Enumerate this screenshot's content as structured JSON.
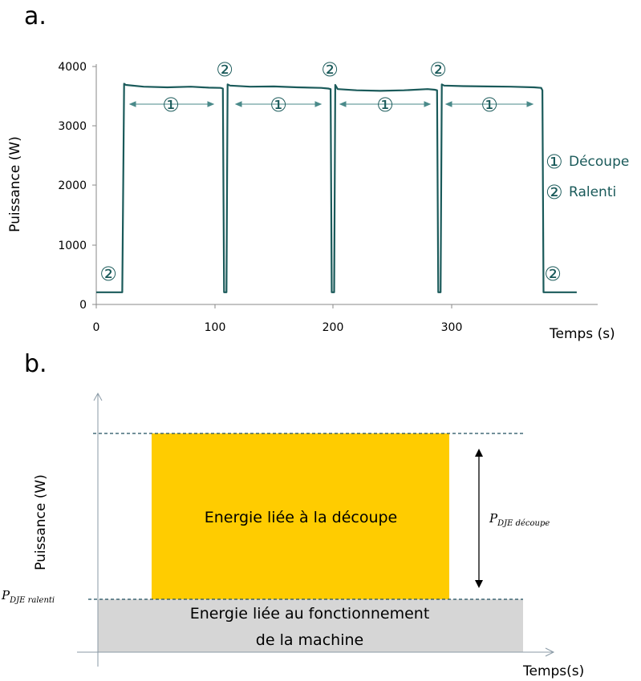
{
  "chart_data": [
    {
      "panel_label": "a.",
      "type": "line",
      "xlabel": "Temps (s)",
      "ylabel": "Puissance (W)",
      "xlim": [
        0,
        400
      ],
      "ylim": [
        0,
        4000
      ],
      "x_ticks": [
        "0",
        "100",
        "200",
        "300"
      ],
      "y_ticks": [
        "0",
        "1000",
        "2000",
        "3000",
        "4000"
      ],
      "series": [
        {
          "color": "#1a5a5a",
          "x": [
            0,
            22,
            23.5,
            25,
            40,
            60,
            80,
            95,
            105,
            107,
            108,
            110,
            111,
            113,
            130,
            150,
            170,
            190,
            196,
            198,
            199,
            201,
            202,
            204,
            220,
            240,
            260,
            280,
            286,
            288,
            289,
            291,
            292,
            294,
            310,
            330,
            350,
            370,
            376,
            377,
            378,
            380,
            406
          ],
          "y": [
            205,
            205,
            3710,
            3690,
            3660,
            3650,
            3660,
            3645,
            3640,
            3630,
            205,
            205,
            3700,
            3680,
            3660,
            3665,
            3650,
            3640,
            3630,
            3620,
            205,
            205,
            3690,
            3620,
            3600,
            3590,
            3600,
            3620,
            3610,
            3600,
            205,
            205,
            3700,
            3680,
            3670,
            3665,
            3660,
            3650,
            3640,
            3600,
            205,
            205,
            205
          ]
        }
      ],
      "phase_markers": {
        "cut": "①",
        "idle": "②"
      },
      "legend": [
        {
          "symbol": "①",
          "label": "Découpe"
        },
        {
          "symbol": "②",
          "label": "Ralenti"
        }
      ]
    },
    {
      "panel_label": "b.",
      "type": "diagram",
      "xlabel": "Temps(s)",
      "ylabel": "Puissance (W)",
      "cut_box_label": "Energie liée à la découpe",
      "cut_box_color": "#ffcc00",
      "idle_box_label_line1": "Energie liée au fonctionnement",
      "idle_box_label_line2": "de la machine",
      "idle_box_color": "#d6d6d6",
      "p_cut_label_main": "P",
      "p_cut_label_sub": "DJE découpe",
      "p_idle_label_main": "P",
      "p_idle_label_sub": "DJE ralenti"
    }
  ]
}
